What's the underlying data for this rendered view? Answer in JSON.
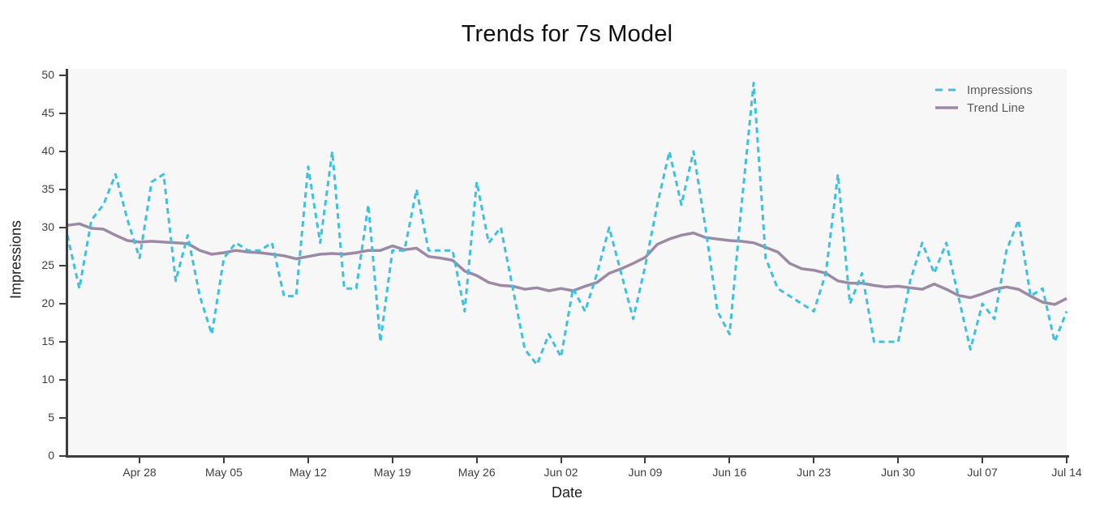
{
  "title": "Trends for 7s Model",
  "x_axis_title": "Date",
  "y_axis_title": "Impressions",
  "legend": {
    "items": [
      {
        "label": "Impressions",
        "style": "dashed"
      },
      {
        "label": "Trend Line",
        "style": "solid"
      }
    ],
    "position": "top-right"
  },
  "colors": {
    "impressions": "#3ec1dc",
    "trend": "#9c8aa4",
    "axis": "#3d3d3d",
    "tick_text": "#3e3e3e",
    "title_text": "#101010",
    "legend_text": "#5a5a5a",
    "plot_background": "#f7f7f8",
    "page_background": "#ffffff"
  },
  "chart_data": {
    "type": "line",
    "title": "Trends for 7s Model",
    "xlabel": "Date",
    "ylabel": "Impressions",
    "ylim": [
      0,
      50
    ],
    "y_ticks": [
      0,
      5,
      10,
      15,
      20,
      25,
      30,
      35,
      40,
      45,
      50
    ],
    "grid": false,
    "legend_position": "top-right",
    "x": [
      "Apr 22",
      "Apr 23",
      "Apr 24",
      "Apr 25",
      "Apr 26",
      "Apr 27",
      "Apr 28",
      "Apr 29",
      "Apr 30",
      "May 01",
      "May 02",
      "May 03",
      "May 04",
      "May 05",
      "May 06",
      "May 07",
      "May 08",
      "May 09",
      "May 10",
      "May 11",
      "May 12",
      "May 13",
      "May 14",
      "May 15",
      "May 16",
      "May 17",
      "May 18",
      "May 19",
      "May 20",
      "May 21",
      "May 22",
      "May 23",
      "May 24",
      "May 25",
      "May 26",
      "May 27",
      "May 28",
      "May 29",
      "May 30",
      "May 31",
      "Jun 01",
      "Jun 02",
      "Jun 03",
      "Jun 04",
      "Jun 05",
      "Jun 06",
      "Jun 07",
      "Jun 08",
      "Jun 09",
      "Jun 10",
      "Jun 11",
      "Jun 12",
      "Jun 13",
      "Jun 14",
      "Jun 15",
      "Jun 16",
      "Jun 17",
      "Jun 18",
      "Jun 19",
      "Jun 20",
      "Jun 21",
      "Jun 22",
      "Jun 23",
      "Jun 24",
      "Jun 25",
      "Jun 26",
      "Jun 27",
      "Jun 28",
      "Jun 29",
      "Jun 30",
      "Jul 01",
      "Jul 02",
      "Jul 03",
      "Jul 04",
      "Jul 05",
      "Jul 06",
      "Jul 07",
      "Jul 08",
      "Jul 09",
      "Jul 10",
      "Jul 11",
      "Jul 12",
      "Jul 13",
      "Jul 14"
    ],
    "x_tick_labels": [
      "Apr 28",
      "May 05",
      "May 12",
      "May 19",
      "May 26",
      "Jun 02",
      "Jun 09",
      "Jun 16",
      "Jun 23",
      "Jun 30",
      "Jul 07",
      "Jul 14"
    ],
    "series": [
      {
        "name": "Impressions",
        "dashed": true,
        "values": [
          29,
          22,
          31,
          33,
          37,
          31,
          26,
          36,
          37,
          23,
          29,
          21,
          16,
          26,
          28,
          27,
          27,
          28,
          21,
          21,
          38,
          28,
          40,
          22,
          22,
          33,
          15,
          27,
          27,
          35,
          27,
          27,
          27,
          19,
          36,
          28,
          30,
          22,
          14,
          12,
          16,
          13,
          22,
          19,
          24,
          30,
          24,
          18,
          25,
          33,
          40,
          33,
          40,
          30,
          19,
          16,
          33,
          49,
          26,
          22,
          21,
          20,
          19,
          24,
          37,
          20,
          24,
          15,
          15,
          15,
          23,
          28,
          24,
          28,
          21,
          14,
          20,
          18,
          27,
          31,
          21,
          22,
          15,
          19
        ]
      },
      {
        "name": "Trend Line",
        "dashed": false,
        "values": [
          30.3,
          30.5,
          29.9,
          29.8,
          29.0,
          28.3,
          28.1,
          28.2,
          28.1,
          28.0,
          27.9,
          27.0,
          26.5,
          26.7,
          27.0,
          26.8,
          26.7,
          26.5,
          26.3,
          25.9,
          26.2,
          26.5,
          26.6,
          26.5,
          26.7,
          27.0,
          27.0,
          27.6,
          27.1,
          27.3,
          26.2,
          26.0,
          25.7,
          24.3,
          23.7,
          22.8,
          22.4,
          22.3,
          21.9,
          22.1,
          21.7,
          22.0,
          21.7,
          22.3,
          22.8,
          24.0,
          24.6,
          25.3,
          26.1,
          27.8,
          28.5,
          29.0,
          29.3,
          28.7,
          28.5,
          28.3,
          28.2,
          28.0,
          27.4,
          26.8,
          25.3,
          24.6,
          24.4,
          24.0,
          23.0,
          22.7,
          22.7,
          22.4,
          22.2,
          22.3,
          22.1,
          21.9,
          22.6,
          21.9,
          21.1,
          20.8,
          21.3,
          21.9,
          22.2,
          21.9,
          21.0,
          20.2,
          19.9,
          20.7
        ]
      }
    ]
  }
}
